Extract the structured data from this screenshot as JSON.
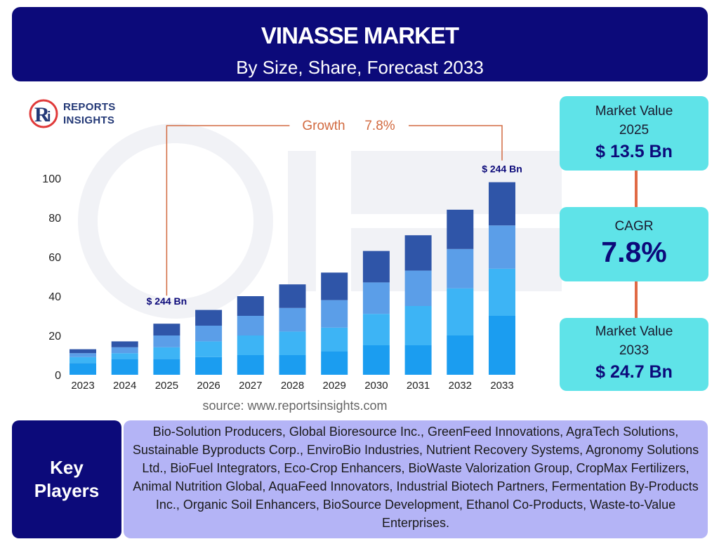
{
  "header": {
    "title": "VINASSE MARKET",
    "subtitle": "By Size, Share, Forecast 2033"
  },
  "logo": {
    "line1": "REPORTS",
    "line2": "INSIGHTS"
  },
  "source": "source: www.reportsinsights.com",
  "stats": {
    "value_2025_label_1": "Market Value",
    "value_2025_label_2": "2025",
    "value_2025": "$ 13.5 Bn",
    "cagr_label": "CAGR",
    "cagr_value": "7.8%",
    "value_2033_label_1": "Market Value",
    "value_2033_label_2": "2033",
    "value_2033": "$ 24.7 Bn"
  },
  "key_players": {
    "label_1": "Key",
    "label_2": "Players",
    "list": "Bio-Solution Producers, Global Bioresource Inc., GreenFeed Innovations, AgraTech Solutions, Sustainable Byproducts Corp., EnviroBio Industries, Nutrient Recovery Systems, Agronomy Solutions Ltd., BioFuel Integrators, Eco-Crop Enhancers, BioWaste Valorization Group, CropMax Fertilizers, Animal Nutrition Global, AquaFeed Innovators, Industrial Biotech Partners, Fermentation By-Products Inc., Organic Soil Enhancers, BioSource Development, Ethanol Co-Products, Waste-to-Value Enterprises."
  },
  "colors": {
    "segment_1": "#1b9df0",
    "segment_2": "#3db4f5",
    "segment_3": "#5b9ee8",
    "segment_4": "#2f55a8",
    "header_bg": "#0c0a7a",
    "stat_bg": "#5fe3e8",
    "growth": "#d26a40"
  },
  "chart_data": {
    "type": "bar",
    "stacked": true,
    "categories": [
      "2023",
      "2024",
      "2025",
      "2026",
      "2027",
      "2028",
      "2029",
      "2030",
      "2031",
      "2032",
      "2033"
    ],
    "series": [
      {
        "values": [
          6,
          8,
          8,
          9,
          10,
          10,
          12,
          15,
          15,
          20,
          30
        ]
      },
      {
        "values": [
          3,
          3,
          6,
          8,
          10,
          12,
          12,
          16,
          20,
          24,
          24
        ]
      },
      {
        "values": [
          2,
          3,
          6,
          8,
          10,
          12,
          14,
          16,
          18,
          20,
          22
        ]
      },
      {
        "values": [
          2,
          3,
          6,
          8,
          10,
          12,
          14,
          16,
          18,
          20,
          22
        ]
      }
    ],
    "yticks": [
      0,
      20,
      40,
      60,
      80,
      100
    ],
    "ylim": [
      0,
      100
    ],
    "grid": false,
    "annotations": {
      "start_label": "$ 244 Bn",
      "end_label": "$ 244 Bn",
      "growth_label": "Growth",
      "growth_value": "7.8%"
    }
  }
}
